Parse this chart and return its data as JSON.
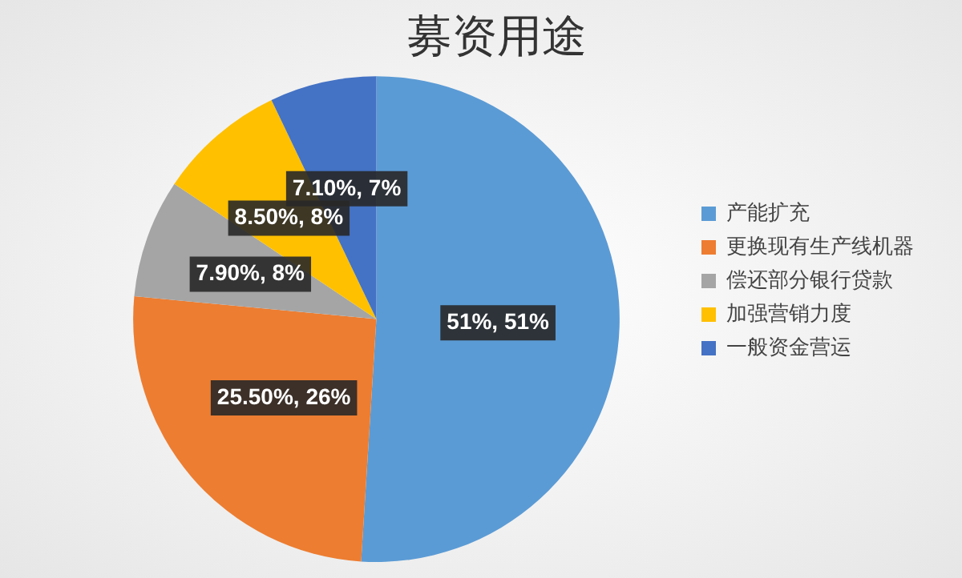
{
  "chart_data": {
    "type": "pie",
    "title": "募资用途",
    "categories": [
      "产能扩充",
      "更换现有生产线机器",
      "偿还部分银行贷款",
      "加强营销力度",
      "一般资金营运"
    ],
    "values": [
      51,
      25.5,
      7.9,
      8.5,
      7.1
    ],
    "colors": [
      "#5b9bd5",
      "#ed7d31",
      "#a5a5a5",
      "#ffc000",
      "#4472c4"
    ],
    "value_labels": [
      "51%, 51%",
      "25.50%, 26%",
      "7.90%, 8%",
      "8.50%, 8%",
      "7.10%, 7%"
    ],
    "legend": "right"
  }
}
